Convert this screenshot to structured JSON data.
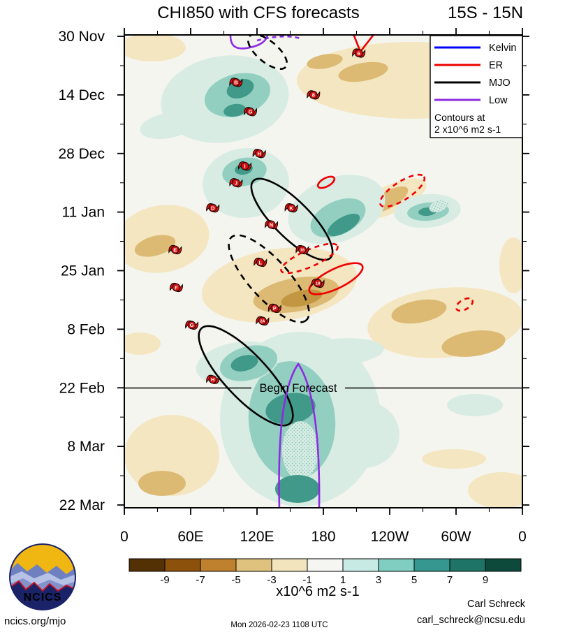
{
  "title": {
    "main": "CHI850 with CFS forecasts",
    "range": "15S - 15N"
  },
  "legend": {
    "items": [
      {
        "label": "Kelvin",
        "color": "#0000ff"
      },
      {
        "label": "ER",
        "color": "#ee0000"
      },
      {
        "label": "MJO",
        "color": "#000000"
      },
      {
        "label": "Low",
        "color": "#8d2be2"
      }
    ],
    "note1": "Contours at",
    "note2": "2 x10^6 m2 s-1"
  },
  "y_axis": {
    "labels": [
      "30 Nov",
      "14 Dec",
      "28 Dec",
      "11 Jan",
      "25 Jan",
      "8 Feb",
      "22 Feb",
      "8 Mar",
      "22 Mar"
    ]
  },
  "x_axis": {
    "labels": [
      "0",
      "60E",
      "120E",
      "180",
      "120W",
      "60W",
      "0"
    ]
  },
  "colorbar": {
    "ticks": [
      "-9",
      "-7",
      "-5",
      "-3",
      "-1",
      "1",
      "3",
      "5",
      "7",
      "9"
    ],
    "colors": [
      "#543005",
      "#8c510a",
      "#bf812d",
      "#dfc27d",
      "#f2e4bc",
      "#f5f5f2",
      "#c7eae5",
      "#80cdc1",
      "#35978f",
      "#1f7468",
      "#0d4a3c"
    ],
    "unit_label": "x10^6 m2 s-1"
  },
  "annotations": {
    "begin_forecast": "Begin Forecast"
  },
  "storms": [
    {
      "id": "B",
      "lon": 101,
      "day": 11,
      "date": "11 Dec"
    },
    {
      "id": "6",
      "lon": 212,
      "day": 4,
      "date": "4 Dec"
    },
    {
      "id": "8",
      "lon": 171,
      "day": 14,
      "date": "14 Dec"
    },
    {
      "id": "G",
      "lon": 114,
      "day": 18,
      "date": "18 Dec"
    },
    {
      "id": "H",
      "lon": 122,
      "day": 28,
      "date": "28 Dec"
    },
    {
      "id": "I",
      "lon": 109,
      "day": 31,
      "date": "31 Dec"
    },
    {
      "id": "J",
      "lon": 101,
      "day": 35,
      "date": "4 Jan"
    },
    {
      "id": "D",
      "lon": 80,
      "day": 41,
      "date": "10 Jan"
    },
    {
      "id": "K",
      "lon": 151,
      "day": 41,
      "date": "10 Jan"
    },
    {
      "id": "N",
      "lon": 133,
      "day": 45,
      "date": "14 Jan"
    },
    {
      "id": "E",
      "lon": 46,
      "day": 51,
      "date": "20 Jan"
    },
    {
      "id": "16",
      "lon": 161,
      "day": 51,
      "date": "20 Jan"
    },
    {
      "id": "L",
      "lon": 123,
      "day": 54,
      "date": "23 Jan"
    },
    {
      "id": "18",
      "lon": 175,
      "day": 59,
      "date": "28 Jan"
    },
    {
      "id": "F",
      "lon": 47,
      "day": 60,
      "date": "29 Jan"
    },
    {
      "id": "P",
      "lon": 136,
      "day": 65,
      "date": "3 Feb"
    },
    {
      "id": "2A",
      "lon": 125,
      "day": 68,
      "date": "6 Feb"
    },
    {
      "id": "G",
      "lon": 61,
      "day": 69,
      "date": "7 Feb"
    },
    {
      "id": "H",
      "lon": 80,
      "day": 82,
      "date": "19 Feb"
    }
  ],
  "footer": {
    "site": "ncics.org/mjo",
    "timestamp": "Mon 2026-02-23 1108 UTC",
    "author": "Carl Schreck",
    "email": "carl_schreck@ncsu.edu",
    "logo_text": "NCICS"
  },
  "chart_data": {
    "type": "heatmap",
    "title": "CHI850 with CFS forecasts",
    "subtitle": "15S - 15N",
    "description": "Time-longitude (Hovmoller) plot of 850 hPa velocity potential anomalies averaged 15S-15N; shading = anomalies, overlaid wave contours (Kelvin, ER, MJO, Low) at 2 x10^6 m2 s-1, red hurricane symbols mark tropical cyclones; CFS forecast below the Begin Forecast line",
    "x_ticks": [
      "0",
      "60E",
      "120E",
      "180",
      "120W",
      "60W",
      "0"
    ],
    "x_range_deg_east": [
      0,
      360
    ],
    "y_ticks": [
      "30 Nov",
      "14 Dec",
      "28 Dec",
      "11 Jan",
      "25 Jan",
      "8 Feb",
      "22 Feb",
      "8 Mar",
      "22 Mar"
    ],
    "y_direction": "time increases downward, 14-day major ticks, 7-day minor ticks",
    "fill_levels": [
      -9,
      -7,
      -5,
      -3,
      -1,
      1,
      3,
      5,
      7,
      9
    ],
    "fill_units": "x10^6 m2 s-1",
    "contour_interval": "2 x10^6 m2 s-1",
    "wave_contour_legend": [
      "Kelvin",
      "ER",
      "MJO",
      "Low"
    ],
    "begin_forecast_date": "22 Feb",
    "storm_markers": [
      {
        "id": "B",
        "lon_deg_east": 101,
        "date": "11 Dec"
      },
      {
        "id": "6",
        "lon_deg_east": 212,
        "date": "4 Dec"
      },
      {
        "id": "8",
        "lon_deg_east": 171,
        "date": "14 Dec"
      },
      {
        "id": "G",
        "lon_deg_east": 114,
        "date": "18 Dec"
      },
      {
        "id": "H",
        "lon_deg_east": 122,
        "date": "28 Dec"
      },
      {
        "id": "I",
        "lon_deg_east": 109,
        "date": "31 Dec"
      },
      {
        "id": "J",
        "lon_deg_east": 101,
        "date": "4 Jan"
      },
      {
        "id": "D",
        "lon_deg_east": 80,
        "date": "10 Jan"
      },
      {
        "id": "K",
        "lon_deg_east": 151,
        "date": "10 Jan"
      },
      {
        "id": "N",
        "lon_deg_east": 133,
        "date": "14 Jan"
      },
      {
        "id": "E",
        "lon_deg_east": 46,
        "date": "20 Jan"
      },
      {
        "id": "16",
        "lon_deg_east": 161,
        "date": "20 Jan"
      },
      {
        "id": "L",
        "lon_deg_east": 123,
        "date": "23 Jan"
      },
      {
        "id": "18",
        "lon_deg_east": 175,
        "date": "28 Jan"
      },
      {
        "id": "F",
        "lon_deg_east": 47,
        "date": "29 Jan"
      },
      {
        "id": "P",
        "lon_deg_east": 136,
        "date": "3 Feb"
      },
      {
        "id": "2A",
        "lon_deg_east": 125,
        "date": "6 Feb"
      },
      {
        "id": "G",
        "lon_deg_east": 61,
        "date": "7 Feb"
      },
      {
        "id": "H",
        "lon_deg_east": 80,
        "date": "19 Feb"
      }
    ]
  }
}
